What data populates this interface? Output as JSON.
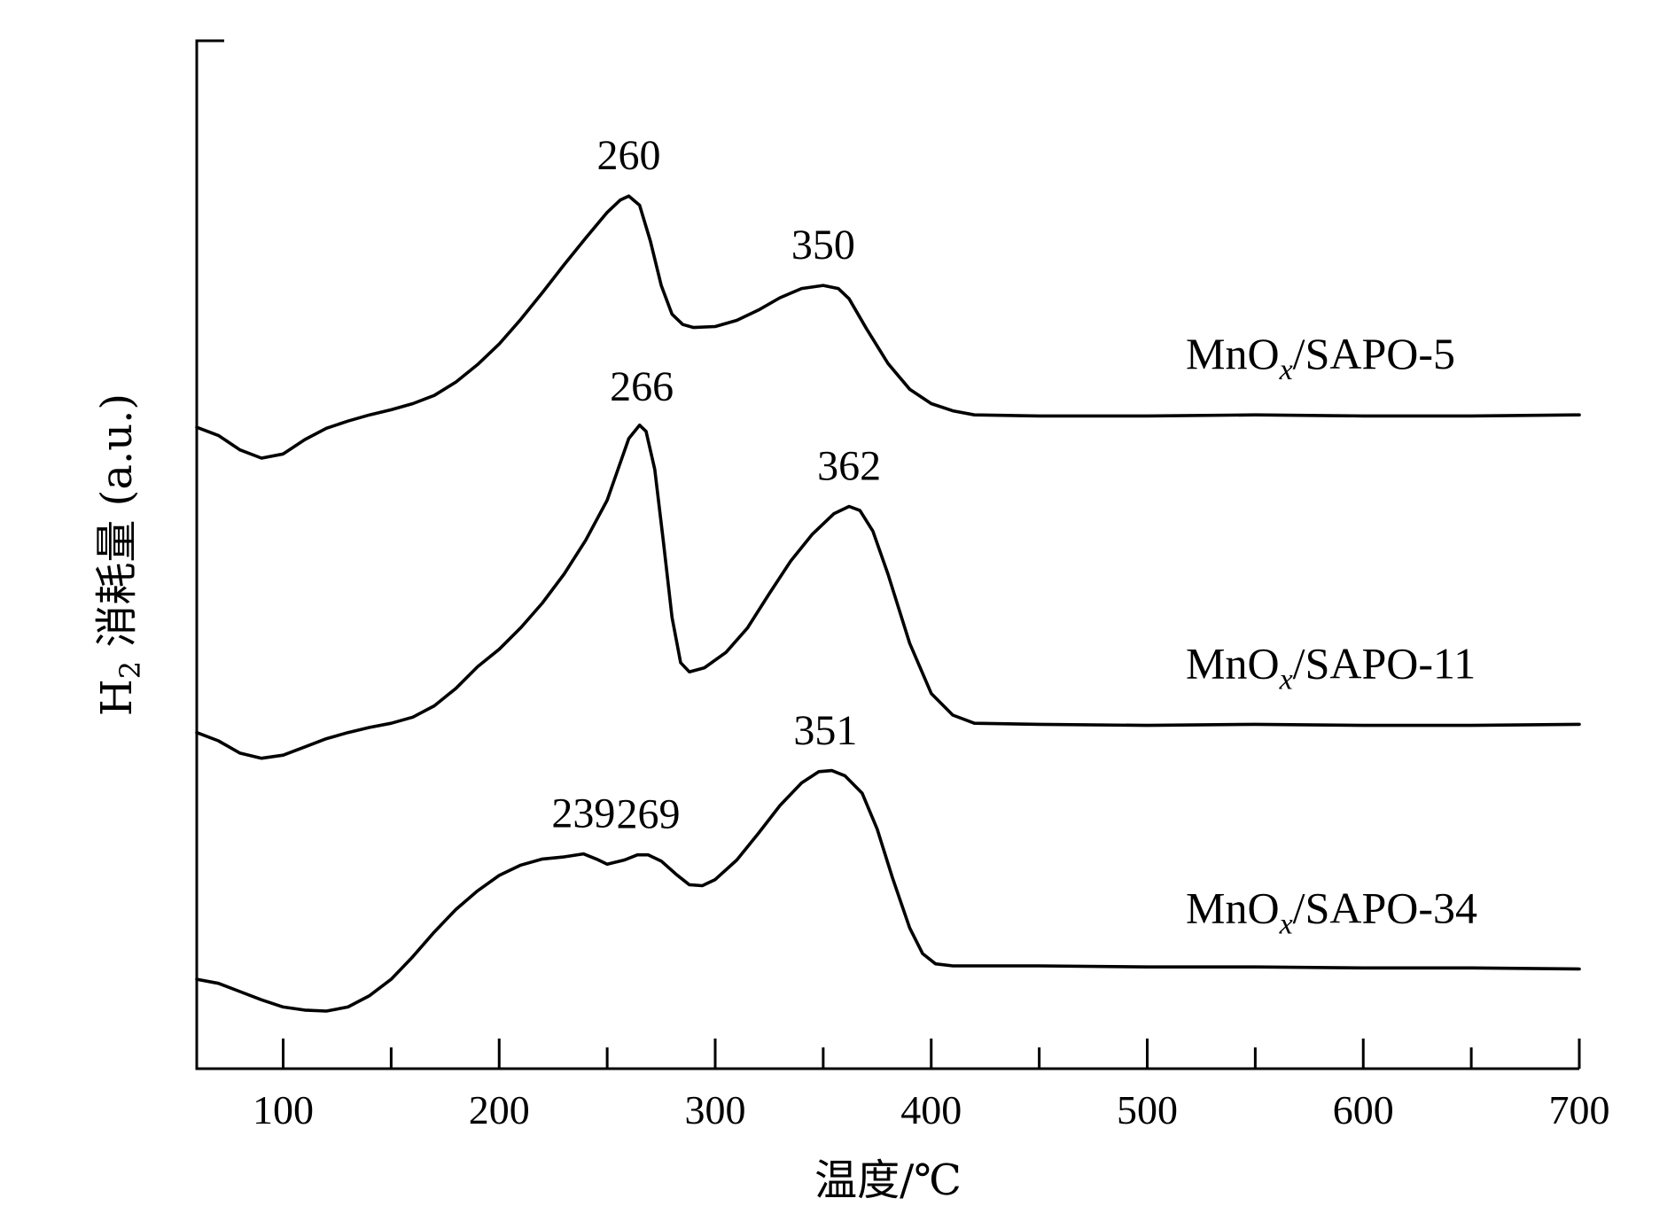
{
  "chart_data": {
    "type": "line",
    "title": "",
    "xlabel": "温度/℃",
    "ylabel_prefix": "H",
    "ylabel_sub": "2",
    "ylabel_rest": " 消耗量 (a.u.)",
    "xlim": [
      60,
      700
    ],
    "xticks": [
      100,
      200,
      300,
      400,
      500,
      600,
      700
    ],
    "xminor": [
      150,
      250,
      350,
      450,
      550,
      650
    ],
    "y_units": "a.u.",
    "ylim": [
      0,
      100
    ],
    "series": [
      {
        "label_main": "MnO",
        "label_sub": "x",
        "label_rest": "/SAPO-5",
        "points": [
          [
            60,
            62.4
          ],
          [
            70,
            61.6
          ],
          [
            80,
            60.2
          ],
          [
            90,
            59.4
          ],
          [
            100,
            59.8
          ],
          [
            110,
            61.2
          ],
          [
            120,
            62.3
          ],
          [
            130,
            63.0
          ],
          [
            140,
            63.6
          ],
          [
            150,
            64.1
          ],
          [
            160,
            64.7
          ],
          [
            170,
            65.5
          ],
          [
            180,
            66.8
          ],
          [
            190,
            68.5
          ],
          [
            200,
            70.5
          ],
          [
            210,
            72.9
          ],
          [
            220,
            75.5
          ],
          [
            230,
            78.2
          ],
          [
            240,
            80.8
          ],
          [
            250,
            83.3
          ],
          [
            256,
            84.5
          ],
          [
            260,
            84.9
          ],
          [
            265,
            84.0
          ],
          [
            270,
            80.5
          ],
          [
            275,
            76.2
          ],
          [
            280,
            73.4
          ],
          [
            285,
            72.4
          ],
          [
            290,
            72.1
          ],
          [
            300,
            72.2
          ],
          [
            310,
            72.8
          ],
          [
            320,
            73.8
          ],
          [
            330,
            75.0
          ],
          [
            340,
            75.9
          ],
          [
            350,
            76.2
          ],
          [
            357,
            75.9
          ],
          [
            362,
            74.9
          ],
          [
            370,
            72.0
          ],
          [
            380,
            68.6
          ],
          [
            390,
            66.1
          ],
          [
            400,
            64.7
          ],
          [
            410,
            64.0
          ],
          [
            420,
            63.6
          ],
          [
            450,
            63.5
          ],
          [
            500,
            63.5
          ],
          [
            550,
            63.6
          ],
          [
            600,
            63.5
          ],
          [
            650,
            63.5
          ],
          [
            700,
            63.6
          ]
        ],
        "peaks": [
          260,
          350
        ]
      },
      {
        "label_main": "MnO",
        "label_sub": "x",
        "label_rest": "/SAPO-11",
        "points": [
          [
            60,
            32.7
          ],
          [
            70,
            31.9
          ],
          [
            80,
            30.7
          ],
          [
            90,
            30.2
          ],
          [
            100,
            30.5
          ],
          [
            110,
            31.3
          ],
          [
            120,
            32.1
          ],
          [
            130,
            32.7
          ],
          [
            140,
            33.2
          ],
          [
            150,
            33.6
          ],
          [
            160,
            34.2
          ],
          [
            170,
            35.3
          ],
          [
            180,
            37.0
          ],
          [
            190,
            39.1
          ],
          [
            200,
            40.8
          ],
          [
            210,
            42.9
          ],
          [
            220,
            45.3
          ],
          [
            230,
            48.1
          ],
          [
            240,
            51.4
          ],
          [
            250,
            55.3
          ],
          [
            255,
            58.3
          ],
          [
            260,
            61.3
          ],
          [
            265,
            62.6
          ],
          [
            268,
            62.0
          ],
          [
            272,
            58.3
          ],
          [
            276,
            51.3
          ],
          [
            280,
            43.9
          ],
          [
            284,
            39.5
          ],
          [
            288,
            38.6
          ],
          [
            295,
            39.0
          ],
          [
            305,
            40.5
          ],
          [
            315,
            42.9
          ],
          [
            325,
            46.2
          ],
          [
            335,
            49.4
          ],
          [
            345,
            52.0
          ],
          [
            355,
            54.0
          ],
          [
            362,
            54.7
          ],
          [
            367,
            54.3
          ],
          [
            373,
            52.3
          ],
          [
            380,
            48.1
          ],
          [
            390,
            41.4
          ],
          [
            400,
            36.5
          ],
          [
            410,
            34.4
          ],
          [
            420,
            33.6
          ],
          [
            450,
            33.5
          ],
          [
            500,
            33.4
          ],
          [
            550,
            33.5
          ],
          [
            600,
            33.4
          ],
          [
            650,
            33.4
          ],
          [
            700,
            33.5
          ]
        ],
        "peaks": [
          266,
          362
        ]
      },
      {
        "label_main": "MnO",
        "label_sub": "x",
        "label_rest": "/SAPO-34",
        "points": [
          [
            60,
            8.7
          ],
          [
            70,
            8.3
          ],
          [
            80,
            7.5
          ],
          [
            90,
            6.7
          ],
          [
            100,
            6.0
          ],
          [
            110,
            5.7
          ],
          [
            120,
            5.6
          ],
          [
            130,
            6.0
          ],
          [
            140,
            7.1
          ],
          [
            150,
            8.7
          ],
          [
            160,
            10.9
          ],
          [
            170,
            13.3
          ],
          [
            180,
            15.5
          ],
          [
            190,
            17.3
          ],
          [
            200,
            18.8
          ],
          [
            210,
            19.8
          ],
          [
            220,
            20.4
          ],
          [
            230,
            20.6
          ],
          [
            239,
            20.9
          ],
          [
            245,
            20.4
          ],
          [
            250,
            19.9
          ],
          [
            258,
            20.3
          ],
          [
            264,
            20.8
          ],
          [
            269,
            20.8
          ],
          [
            275,
            20.2
          ],
          [
            282,
            18.9
          ],
          [
            288,
            17.9
          ],
          [
            294,
            17.8
          ],
          [
            300,
            18.4
          ],
          [
            310,
            20.3
          ],
          [
            320,
            22.9
          ],
          [
            330,
            25.6
          ],
          [
            340,
            27.8
          ],
          [
            348,
            28.9
          ],
          [
            354,
            29.0
          ],
          [
            360,
            28.5
          ],
          [
            368,
            26.8
          ],
          [
            375,
            23.3
          ],
          [
            382,
            18.6
          ],
          [
            390,
            13.7
          ],
          [
            396,
            11.2
          ],
          [
            402,
            10.2
          ],
          [
            410,
            10.0
          ],
          [
            450,
            10.0
          ],
          [
            500,
            9.9
          ],
          [
            550,
            9.9
          ],
          [
            600,
            9.8
          ],
          [
            650,
            9.8
          ],
          [
            700,
            9.7
          ]
        ],
        "peaks": [
          239,
          269,
          351
        ]
      }
    ]
  }
}
